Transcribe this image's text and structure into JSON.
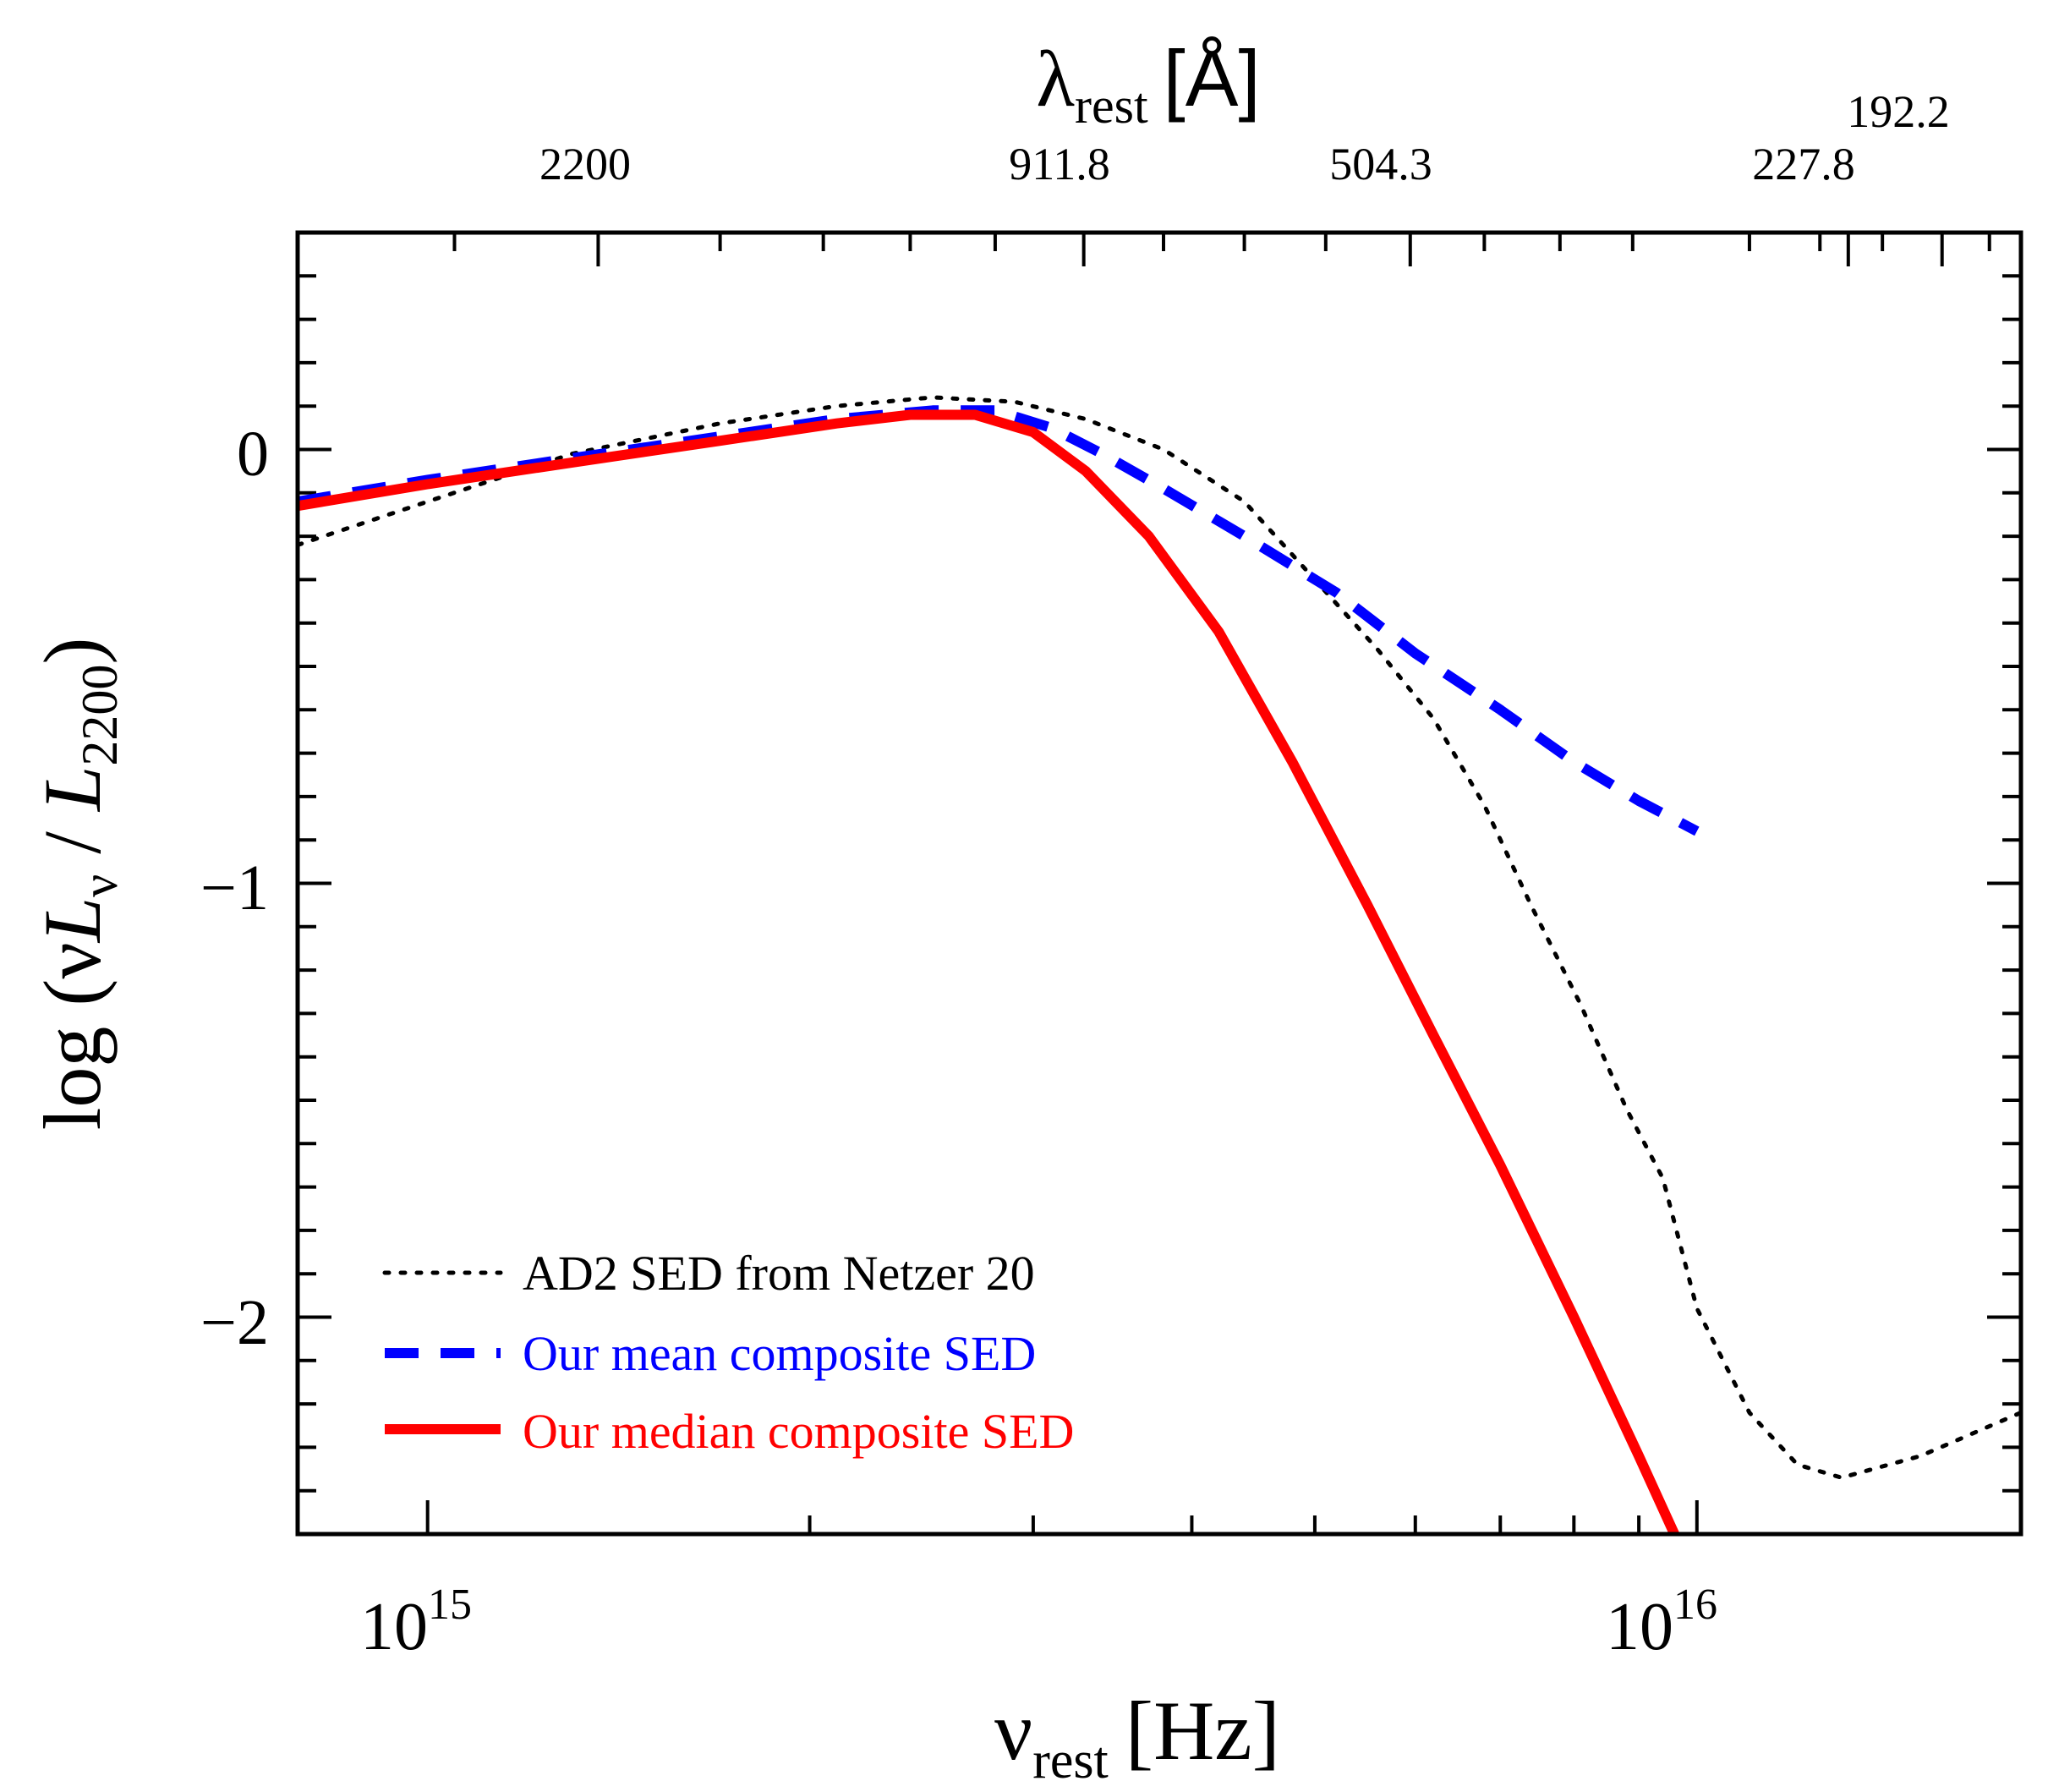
{
  "chart_data": {
    "type": "line",
    "x_axis": {
      "label_main": "ν",
      "label_sub": "rest",
      "label_unit": "[Hz]",
      "scale": "log",
      "range": [
        790000000000000.0,
        1.8e+16
      ],
      "major_ticks": [
        {
          "value": 1000000000000000.0,
          "base": "10",
          "exp": "15"
        },
        {
          "value": 1e+16,
          "base": "10",
          "exp": "16"
        }
      ],
      "minor_ticks": [
        2000000000000000.0,
        3000000000000000.0,
        4000000000000000.0,
        5000000000000000.0,
        6000000000000000.0,
        7000000000000000.0,
        8000000000000000.0,
        9000000000000000.0
      ]
    },
    "top_axis": {
      "label_main": "λ",
      "label_sub": "rest",
      "label_unit": "[Å]",
      "ticks": [
        {
          "label": "2200",
          "freq": 1362700000000000.0,
          "row": "low"
        },
        {
          "label": "911.8",
          "freq": 3288000000000000.0,
          "row": "low"
        },
        {
          "label": "504.3",
          "freq": 5945000000000000.0,
          "row": "low"
        },
        {
          "label": "227.8",
          "freq": 1.316e+16,
          "row": "low"
        },
        {
          "label": "192.2",
          "freq": 1.56e+16,
          "row": "high"
        }
      ],
      "minor_ticks": [
        1050000000000000.0,
        1700000000000000.0,
        2050000000000000.0,
        2400000000000000.0,
        2800000000000000.0,
        3800000000000000.0,
        4400000000000000.0,
        5100000000000000.0,
        6800000000000000.0,
        7800000000000000.0,
        8900000000000000.0,
        1.1e+16,
        1.25e+16,
        1.4e+16,
        1.7e+16
      ]
    },
    "y_axis": {
      "label_prefix": "log (ν",
      "label_L1": "L",
      "label_L1_sub": "ν",
      "label_slash": " / ",
      "label_L2": "L",
      "label_L2_sub": "2200",
      "label_close": ")",
      "range": [
        -2.5,
        0.5
      ],
      "major_ticks": [
        {
          "value": 0,
          "label": "0"
        },
        {
          "value": -1,
          "label": "−1"
        },
        {
          "value": -2,
          "label": "−2"
        }
      ],
      "minor_step": 0.1
    },
    "series": [
      {
        "name": "AD2 SED from Netzer 20",
        "style": "dotted",
        "color": "#000000",
        "x": [
          790000000000000.0,
          1000000000000000.0,
          1300000000000000.0,
          1700000000000000.0,
          2100000000000000.0,
          2500000000000000.0,
          2900000000000000.0,
          3300000000000000.0,
          3800000000000000.0,
          4400000000000000.0,
          5000000000000000.0,
          5600000000000000.0,
          6200000000000000.0,
          6800000000000000.0,
          7400000000000000.0,
          8100000000000000.0,
          8800000000000000.0,
          9400000000000000.0,
          1e+16,
          1.1e+16,
          1.2e+16,
          1.3e+16,
          1.5e+16,
          1.8e+16
        ],
        "y": [
          -0.22,
          -0.12,
          -0.01,
          0.06,
          0.1,
          0.12,
          0.11,
          0.07,
          0.0,
          -0.12,
          -0.3,
          -0.46,
          -0.62,
          -0.82,
          -1.05,
          -1.28,
          -1.52,
          -1.68,
          -1.98,
          -2.22,
          -2.34,
          -2.37,
          -2.32,
          -2.22
        ]
      },
      {
        "name": "Our mean composite SED",
        "style": "dashed",
        "color": "#0000ff",
        "x": [
          790000000000000.0,
          1000000000000000.0,
          1300000000000000.0,
          1700000000000000.0,
          2100000000000000.0,
          2500000000000000.0,
          2800000000000000.0,
          3100000000000000.0,
          3400000000000000.0,
          3800000000000000.0,
          4400000000000000.0,
          5200000000000000.0,
          6000000000000000.0,
          7000000000000000.0,
          8000000000000000.0,
          9000000000000000.0,
          1e+16
        ],
        "y": [
          -0.12,
          -0.07,
          -0.02,
          0.03,
          0.07,
          0.09,
          0.09,
          0.05,
          -0.01,
          -0.09,
          -0.2,
          -0.33,
          -0.47,
          -0.6,
          -0.72,
          -0.81,
          -0.88
        ]
      },
      {
        "name": "Our median composite SED",
        "style": "solid",
        "color": "#ff0000",
        "x": [
          790000000000000.0,
          1000000000000000.0,
          1300000000000000.0,
          1700000000000000.0,
          2100000000000000.0,
          2400000000000000.0,
          2700000000000000.0,
          3000000000000000.0,
          3300000000000000.0,
          3700000000000000.0,
          4200000000000000.0,
          4800000000000000.0,
          5500000000000000.0,
          6200000000000000.0,
          7000000000000000.0,
          8000000000000000.0,
          9000000000000000.0,
          9600000000000000.0
        ],
        "y": [
          -0.13,
          -0.08,
          -0.03,
          0.02,
          0.06,
          0.08,
          0.08,
          0.04,
          -0.05,
          -0.2,
          -0.42,
          -0.72,
          -1.05,
          -1.35,
          -1.65,
          -2.0,
          -2.32,
          -2.5
        ]
      }
    ],
    "legend": {
      "placement": "bottom-left",
      "entries": [
        {
          "label": "AD2 SED from Netzer 20",
          "color": "#000000",
          "style": "dotted"
        },
        {
          "label": "Our mean composite SED",
          "color": "#0000ff",
          "style": "dashed"
        },
        {
          "label": "Our median composite SED",
          "color": "#ff0000",
          "style": "solid"
        }
      ]
    }
  }
}
